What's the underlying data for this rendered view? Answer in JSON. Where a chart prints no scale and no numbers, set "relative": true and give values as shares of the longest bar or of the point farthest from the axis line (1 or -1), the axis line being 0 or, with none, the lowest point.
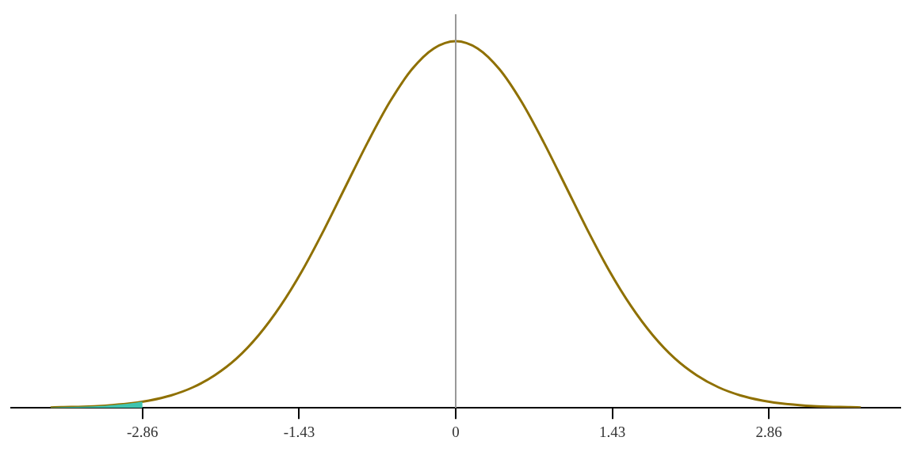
{
  "chart_data": {
    "type": "line",
    "relative": true,
    "xlim": [
      -4.06,
      4.06
    ],
    "xticks": [
      -2.86,
      -1.43,
      0,
      1.43,
      2.86
    ],
    "grid": false,
    "legend": false,
    "marker": "none",
    "line_style": "solid",
    "ref_lines": [
      {
        "axis": "x",
        "value": 0,
        "color": "#999999"
      }
    ],
    "series": [
      {
        "type": "area",
        "color": "#40c4b0",
        "x": [
          -3.7,
          -3.6,
          -3.4,
          -3.2,
          -3.0,
          -2.86
        ],
        "values": [
          0.001,
          0.002,
          0.003,
          0.006,
          0.011,
          0.017
        ]
      },
      {
        "color": "#8f7000",
        "x": [
          -3.7,
          -3.6,
          -3.4,
          -3.2,
          -3.0,
          -2.8,
          -2.6,
          -2.4,
          -2.2,
          -2.0,
          -1.8,
          -1.6,
          -1.4,
          -1.2,
          -1.0,
          -0.8,
          -0.6,
          -0.4,
          -0.2,
          0,
          0.2,
          0.4,
          0.6,
          0.8,
          1.0,
          1.2,
          1.4,
          1.6,
          1.8,
          2.0,
          2.2,
          2.4,
          2.6,
          2.8,
          3.0,
          3.2,
          3.4,
          3.6,
          3.7
        ],
        "values": [
          0.001,
          0.002,
          0.003,
          0.006,
          0.011,
          0.02,
          0.034,
          0.056,
          0.089,
          0.135,
          0.198,
          0.278,
          0.375,
          0.487,
          0.607,
          0.726,
          0.835,
          0.923,
          0.98,
          1,
          0.98,
          0.923,
          0.835,
          0.726,
          0.607,
          0.487,
          0.375,
          0.278,
          0.198,
          0.135,
          0.089,
          0.056,
          0.034,
          0.02,
          0.011,
          0.006,
          0.003,
          0.002,
          0.001
        ]
      }
    ]
  }
}
